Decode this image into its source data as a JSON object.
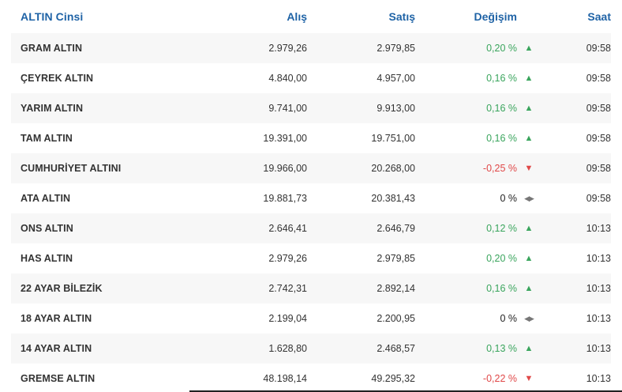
{
  "header": {
    "name": "ALTIN Cinsi",
    "alis": "Alış",
    "satis": "Satış",
    "degisim": "Değişim",
    "saat": "Saat"
  },
  "colors": {
    "header_text": "#1f63a6",
    "positive": "#3aa55d",
    "negative": "#e04848",
    "neutral": "#222222",
    "stripe": "#f7f7f7"
  },
  "rows": [
    {
      "name": "GRAM ALTIN",
      "alis": "2.979,26",
      "satis": "2.979,85",
      "degisim": "0,20 %",
      "dir": "up",
      "saat": "09:58"
    },
    {
      "name": "ÇEYREK ALTIN",
      "alis": "4.840,00",
      "satis": "4.957,00",
      "degisim": "0,16 %",
      "dir": "up",
      "saat": "09:58"
    },
    {
      "name": "YARIM ALTIN",
      "alis": "9.741,00",
      "satis": "9.913,00",
      "degisim": "0,16 %",
      "dir": "up",
      "saat": "09:58"
    },
    {
      "name": "TAM ALTIN",
      "alis": "19.391,00",
      "satis": "19.751,00",
      "degisim": "0,16 %",
      "dir": "up",
      "saat": "09:58"
    },
    {
      "name": "CUMHURİYET ALTINI",
      "alis": "19.966,00",
      "satis": "20.268,00",
      "degisim": "-0,25 %",
      "dir": "down",
      "saat": "09:58"
    },
    {
      "name": "ATA ALTIN",
      "alis": "19.881,73",
      "satis": "20.381,43",
      "degisim": "0 %",
      "dir": "flat",
      "saat": "09:58"
    },
    {
      "name": "ONS ALTIN",
      "alis": "2.646,41",
      "satis": "2.646,79",
      "degisim": "0,12 %",
      "dir": "up",
      "saat": "10:13"
    },
    {
      "name": "HAS ALTIN",
      "alis": "2.979,26",
      "satis": "2.979,85",
      "degisim": "0,20 %",
      "dir": "up",
      "saat": "10:13"
    },
    {
      "name": "22 AYAR BİLEZİK",
      "alis": "2.742,31",
      "satis": "2.892,14",
      "degisim": "0,16 %",
      "dir": "up",
      "saat": "10:13"
    },
    {
      "name": "18 AYAR ALTIN",
      "alis": "2.199,04",
      "satis": "2.200,95",
      "degisim": "0 %",
      "dir": "flat",
      "saat": "10:13"
    },
    {
      "name": "14 AYAR ALTIN",
      "alis": "1.628,80",
      "satis": "2.468,57",
      "degisim": "0,13 %",
      "dir": "up",
      "saat": "10:13"
    },
    {
      "name": "GREMSE ALTIN",
      "alis": "48.198,14",
      "satis": "49.295,32",
      "degisim": "-0,22 %",
      "dir": "down",
      "saat": "10:13"
    }
  ],
  "icons": {
    "up": "triangle-up-icon",
    "down": "triangle-down-icon",
    "flat": "left-right-arrows-icon"
  }
}
